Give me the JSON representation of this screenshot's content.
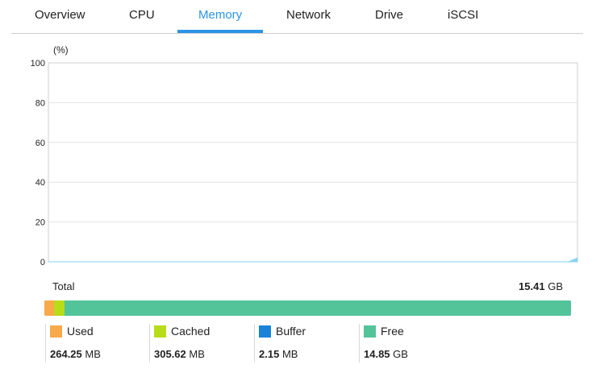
{
  "tabs": [
    {
      "label": "Overview"
    },
    {
      "label": "CPU"
    },
    {
      "label": "Memory"
    },
    {
      "label": "Network"
    },
    {
      "label": "Drive"
    },
    {
      "label": "iSCSI"
    }
  ],
  "active_tab": "Memory",
  "accent_color": "#2a94e6",
  "chart_data": {
    "type": "area",
    "unit_label": "(%)",
    "ylim": [
      0,
      100
    ],
    "yticks": [
      "100",
      "80",
      "60",
      "40",
      "20",
      "0"
    ],
    "grid": true,
    "series": [
      {
        "color": "#7dd3f0",
        "values": [
          0,
          0,
          0,
          0,
          0,
          0,
          0,
          0,
          0,
          0,
          0,
          0,
          0,
          0,
          0,
          0,
          0,
          0,
          0,
          0,
          0,
          0,
          0,
          0,
          0,
          0,
          0,
          0,
          0,
          0,
          0,
          0,
          0,
          0,
          0,
          0,
          0,
          0,
          0,
          0,
          0,
          0,
          0,
          0,
          0,
          0,
          0,
          0,
          0,
          0,
          0,
          0,
          0,
          0,
          0,
          0,
          0,
          0,
          0,
          2
        ]
      }
    ]
  },
  "memory": {
    "total_label": "Total",
    "total_value": "15.41",
    "total_unit": "GB",
    "legend": [
      {
        "label": "Used",
        "value": "264.25",
        "unit": "MB",
        "color": "#f8a94a",
        "fraction": 0.0167
      },
      {
        "label": "Cached",
        "value": "305.62",
        "unit": "MB",
        "color": "#b9dc19",
        "fraction": 0.0194
      },
      {
        "label": "Buffer",
        "value": "2.15",
        "unit": "MB",
        "color": "#1a82d9",
        "fraction": 0.0002
      },
      {
        "label": "Free",
        "value": "14.85",
        "unit": "GB",
        "color": "#53c39a",
        "fraction": 0.9637
      }
    ]
  }
}
